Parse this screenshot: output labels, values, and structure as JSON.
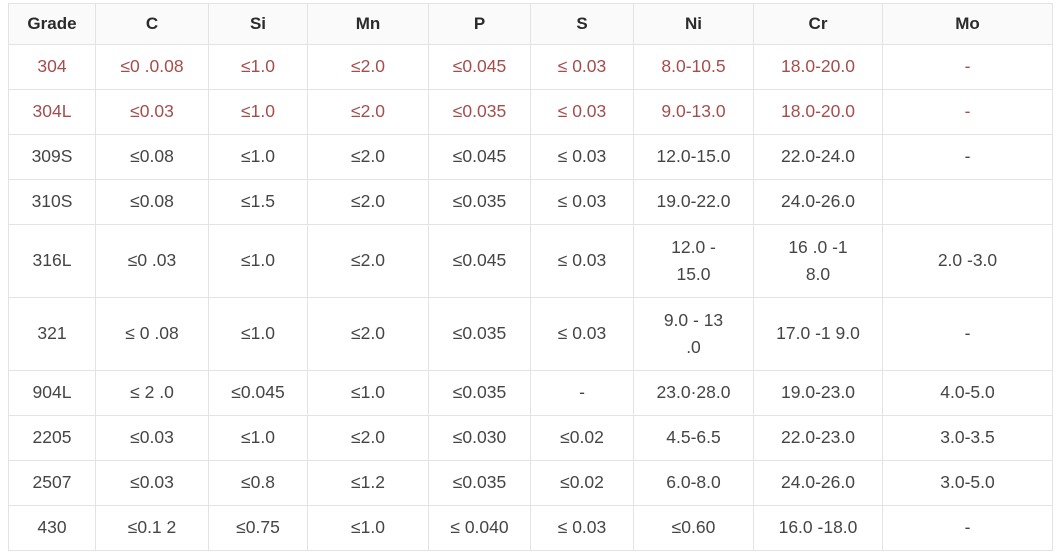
{
  "chart_data": {
    "type": "table",
    "columns": [
      "Grade",
      "C",
      "Si",
      "Mn",
      "P",
      "S",
      "Ni",
      "Cr",
      "Mo"
    ],
    "rows": [
      {
        "highlight": true,
        "tall": false,
        "cells": [
          "304",
          "≤0 .0.08",
          "≤1.0",
          "≤2.0",
          "≤0.045",
          "≤ 0.03",
          "8.0-10.5",
          "18.0-20.0",
          "-"
        ]
      },
      {
        "highlight": true,
        "tall": false,
        "cells": [
          "304L",
          "≤0.03",
          "≤1.0",
          "≤2.0",
          "≤0.035",
          "≤ 0.03",
          "9.0-13.0",
          "18.0-20.0",
          "-"
        ]
      },
      {
        "highlight": false,
        "tall": false,
        "cells": [
          "309S",
          "≤0.08",
          "≤1.0",
          "≤2.0",
          "≤0.045",
          "≤ 0.03",
          "12.0-15.0",
          "22.0-24.0",
          "-"
        ]
      },
      {
        "highlight": false,
        "tall": false,
        "cells": [
          "310S",
          "≤0.08",
          "≤1.5",
          "≤2.0",
          "≤0.035",
          "≤ 0.03",
          "19.0-22.0",
          "24.0-26.0",
          ""
        ]
      },
      {
        "highlight": false,
        "tall": true,
        "cells": [
          "316L",
          "≤0 .03",
          "≤1.0",
          "≤2.0",
          "≤0.045",
          "≤ 0.03",
          "12.0 -\n15.0",
          "16 .0 -1\n8.0",
          "2.0 -3.0"
        ]
      },
      {
        "highlight": false,
        "tall": true,
        "cells": [
          "321",
          "≤ 0 .08",
          "≤1.0",
          "≤2.0",
          "≤0.035",
          "≤ 0.03",
          "9.0 - 13\n.0",
          "17.0 -1 9.0",
          "-"
        ]
      },
      {
        "highlight": false,
        "tall": false,
        "cells": [
          "904L",
          "≤ 2 .0",
          "≤0.045",
          "≤1.0",
          "≤0.035",
          "-",
          "23.0·28.0",
          "19.0-23.0",
          "4.0-5.0"
        ]
      },
      {
        "highlight": false,
        "tall": false,
        "cells": [
          "2205",
          "≤0.03",
          "≤1.0",
          "≤2.0",
          "≤0.030",
          "≤0.02",
          "4.5-6.5",
          "22.0-23.0",
          "3.0-3.5"
        ]
      },
      {
        "highlight": false,
        "tall": false,
        "cells": [
          "2507",
          "≤0.03",
          "≤0.8",
          "≤1.2",
          "≤0.035",
          "≤0.02",
          "6.0-8.0",
          "24.0-26.0",
          "3.0-5.0"
        ]
      },
      {
        "highlight": false,
        "tall": false,
        "cells": [
          "430",
          "≤0.1 2",
          "≤0.75",
          "≤1.0",
          "≤ 0.040",
          "≤ 0.03",
          "≤0.60",
          "16.0 -18.0",
          "-"
        ]
      }
    ]
  },
  "colors": {
    "highlight_text": "#a54d4d",
    "body_text": "#454545",
    "header_text": "#2b2b2b",
    "border": "#e3e3e3",
    "header_bg": "#fafafa"
  }
}
